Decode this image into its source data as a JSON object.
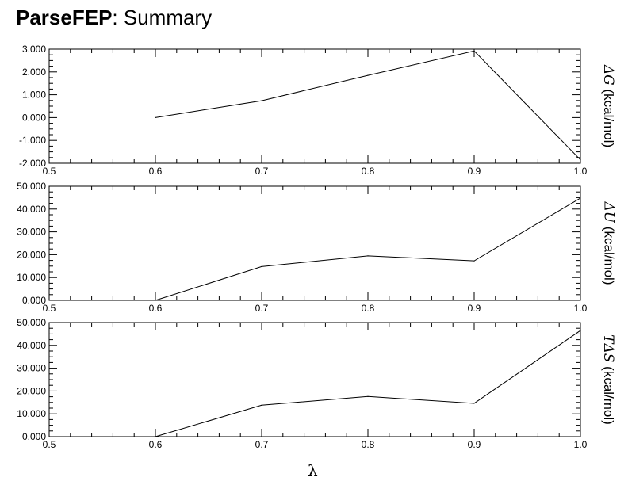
{
  "title": {
    "bold": "ParseFEP",
    "rest": ": Summary"
  },
  "xlabel": "λ",
  "chart_data": [
    {
      "type": "line",
      "x": [
        0.6,
        0.7,
        0.8,
        0.9,
        1.0
      ],
      "values": [
        0.0,
        0.74,
        1.85,
        2.92,
        -1.85
      ],
      "xlim": [
        0.5,
        1.0
      ],
      "ylim": [
        -2.0,
        3.0
      ],
      "yticks": [
        "-2.000",
        "-1.000",
        "0.000",
        "1.000",
        "2.000",
        "3.000"
      ],
      "xticks": [
        "0.5",
        "0.6",
        "0.7",
        "0.8",
        "0.9",
        "1.0"
      ],
      "ylabel_symbol": "ΔG",
      "ylabel_unit": " (kcal/mol)"
    },
    {
      "type": "line",
      "x": [
        0.6,
        0.7,
        0.8,
        0.9,
        1.0
      ],
      "values": [
        0.0,
        14.8,
        19.5,
        17.3,
        44.8
      ],
      "xlim": [
        0.5,
        1.0
      ],
      "ylim": [
        0,
        50
      ],
      "yticks": [
        "0.000",
        "10.000",
        "20.000",
        "30.000",
        "40.000",
        "50.000"
      ],
      "xticks": [
        "0.5",
        "0.6",
        "0.7",
        "0.8",
        "0.9",
        "1.0"
      ],
      "ylabel_symbol": "ΔU",
      "ylabel_unit": " (kcal/mol)"
    },
    {
      "type": "line",
      "x": [
        0.6,
        0.7,
        0.8,
        0.9,
        1.0
      ],
      "values": [
        0.0,
        13.8,
        17.6,
        14.6,
        46.5
      ],
      "xlim": [
        0.5,
        1.0
      ],
      "ylim": [
        0,
        50
      ],
      "yticks": [
        "0.000",
        "10.000",
        "20.000",
        "30.000",
        "40.000",
        "50.000"
      ],
      "xticks": [
        "0.5",
        "0.6",
        "0.7",
        "0.8",
        "0.9",
        "1.0"
      ],
      "ylabel_symbol": "TΔS",
      "ylabel_unit": " (kcal/mol)"
    }
  ]
}
